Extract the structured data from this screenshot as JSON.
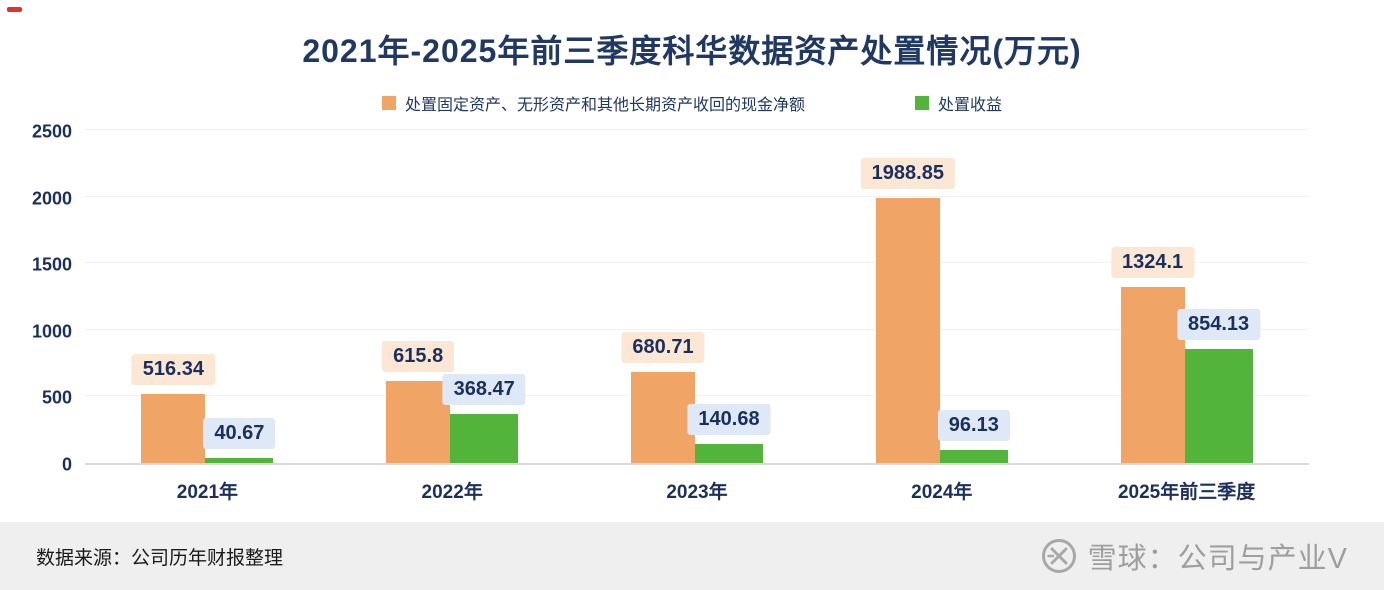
{
  "title": "2021年-2025年前三季度科华数据资产处置情况(万元)",
  "chart_data": {
    "type": "bar",
    "categories": [
      "2021年",
      "2022年",
      "2023年",
      "2024年",
      "2025年前三季度"
    ],
    "series": [
      {
        "name": "处置固定资产、无形资产和其他长期资产收回的现金净额",
        "values": [
          516.34,
          615.8,
          680.71,
          1988.85,
          1324.1
        ],
        "color": "#f0a466",
        "label_bg": "#fbe7d4"
      },
      {
        "name": "处置收益",
        "values": [
          40.67,
          368.47,
          140.68,
          96.13,
          854.13
        ],
        "color": "#52b43a",
        "label_bg": "#dee8f6"
      }
    ],
    "ylim": [
      0,
      2500
    ],
    "yticks": [
      0,
      500,
      1000,
      1500,
      2000,
      2500
    ],
    "grid": true,
    "legend_position": "top"
  },
  "colors": {
    "title_navy": "#203864",
    "axis_navy": "#1b2f5e",
    "bar_orange": "#f0a466",
    "bar_green": "#52b43a",
    "orange_label_bg": "#fbe7d4",
    "green_label_bg": "#dee8f6",
    "footer_bg": "#efefef",
    "watermark_gray": "#9e9e9e"
  },
  "footer": {
    "source": "数据来源：公司历年财报整理",
    "watermark": "雪球：公司与产业V"
  }
}
